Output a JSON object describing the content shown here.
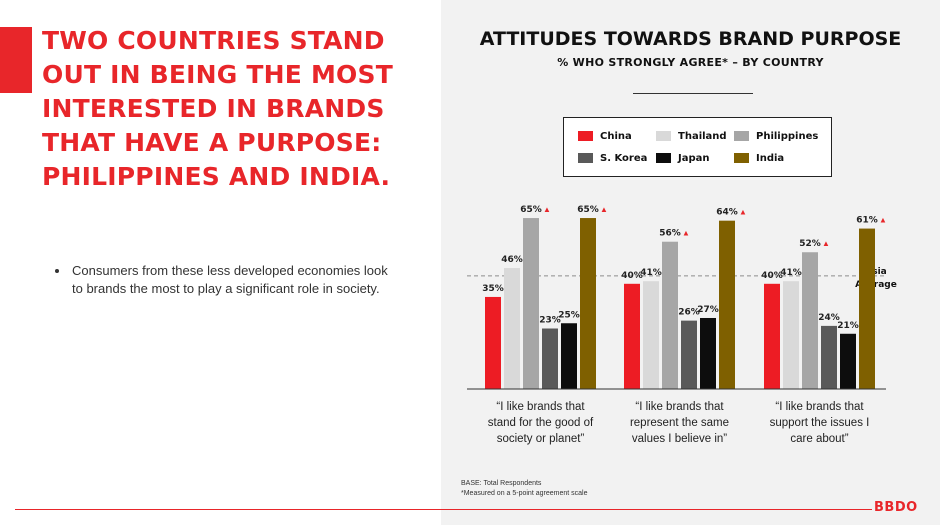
{
  "headline": "TWO COUNTRIES STAND OUT IN BEING THE MOST INTERESTED IN BRANDS THAT HAVE A PURPOSE: PHILIPPINES AND INDIA.",
  "bullets": [
    "Consumers from these less developed economies look to brands the most to play a significant role in society."
  ],
  "footnote": {
    "base": "BASE: Total Respondents",
    "scale": "*Measured on a 5-point agreement scale"
  },
  "brand": "BBDO",
  "colors": {
    "accent": "#e8262a",
    "panel": "#f2f2f2"
  },
  "chart_data": {
    "type": "bar",
    "title": "ATTITUDES TOWARDS BRAND PURPOSE",
    "subtitle": "% WHO STRONGLY AGREE* – BY COUNTRY",
    "categories": [
      [
        "“I like brands that",
        "stand for the good of",
        "society or planet”"
      ],
      [
        "“I like brands that",
        "represent the same",
        "values I believe in”"
      ],
      [
        "“I like brands that",
        "support the issues I",
        "care about”"
      ]
    ],
    "series": [
      {
        "name": "China",
        "color": "#ed1c24",
        "values": [
          35,
          40,
          40
        ]
      },
      {
        "name": "Thailand",
        "color": "#d9d9d9",
        "values": [
          46,
          41,
          41
        ]
      },
      {
        "name": "Philippines",
        "color": "#a6a6a6",
        "values": [
          65,
          56,
          52
        ]
      },
      {
        "name": "S. Korea",
        "color": "#595959",
        "values": [
          23,
          26,
          24
        ]
      },
      {
        "name": "Japan",
        "color": "#0d0d0d",
        "values": [
          25,
          27,
          21
        ]
      },
      {
        "name": "India",
        "color": "#7f6000",
        "values": [
          65,
          64,
          61
        ]
      }
    ],
    "highlight": {
      "series": [
        "Philippines",
        "India"
      ],
      "marker": "▲",
      "marker_color": "#e8262a"
    },
    "reference_line": {
      "label": [
        "Asia",
        "Average"
      ],
      "value": 43,
      "style": "dashed"
    },
    "ylim": [
      0,
      70
    ],
    "legend_position": "top",
    "grid": false
  }
}
